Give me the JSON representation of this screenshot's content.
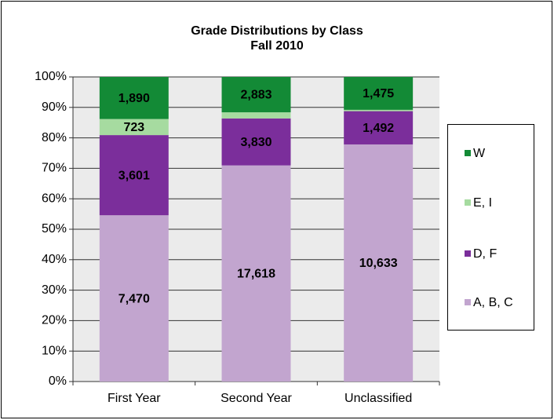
{
  "chart_data": {
    "type": "bar",
    "stacking": "percent",
    "title": "Grade Distributions by Class",
    "subtitle": "Fall 2010",
    "categories": [
      "First Year",
      "Second Year",
      "Unclassified"
    ],
    "series": [
      {
        "name": "A, B, C",
        "color": "#c2a5cf",
        "values": [
          7470,
          17618,
          10633
        ],
        "value_labels": [
          "7,470",
          "17,618",
          "10,633"
        ]
      },
      {
        "name": "D, F",
        "color": "#7b2e9b",
        "values": [
          3601,
          3830,
          1492
        ],
        "value_labels": [
          "3,601",
          "3,830",
          "1,492"
        ]
      },
      {
        "name": "E, I",
        "color": "#a6dba0",
        "values": [
          723,
          500,
          60
        ],
        "value_labels": [
          "723",
          null,
          null
        ]
      },
      {
        "name": "W",
        "color": "#138a36",
        "values": [
          1890,
          2883,
          1475
        ],
        "value_labels": [
          "1,890",
          "2,883",
          "1,475"
        ]
      }
    ],
    "ylim": [
      0,
      100
    ],
    "yticks": [
      {
        "value": 0,
        "label": "0%"
      },
      {
        "value": 10,
        "label": "10%"
      },
      {
        "value": 20,
        "label": "20%"
      },
      {
        "value": 30,
        "label": "30%"
      },
      {
        "value": 40,
        "label": "40%"
      },
      {
        "value": 50,
        "label": "50%"
      },
      {
        "value": 60,
        "label": "60%"
      },
      {
        "value": 70,
        "label": "70%"
      },
      {
        "value": 80,
        "label": "80%"
      },
      {
        "value": 90,
        "label": "90%"
      },
      {
        "value": 100,
        "label": "100%"
      }
    ],
    "grid": true,
    "legend": "right"
  }
}
